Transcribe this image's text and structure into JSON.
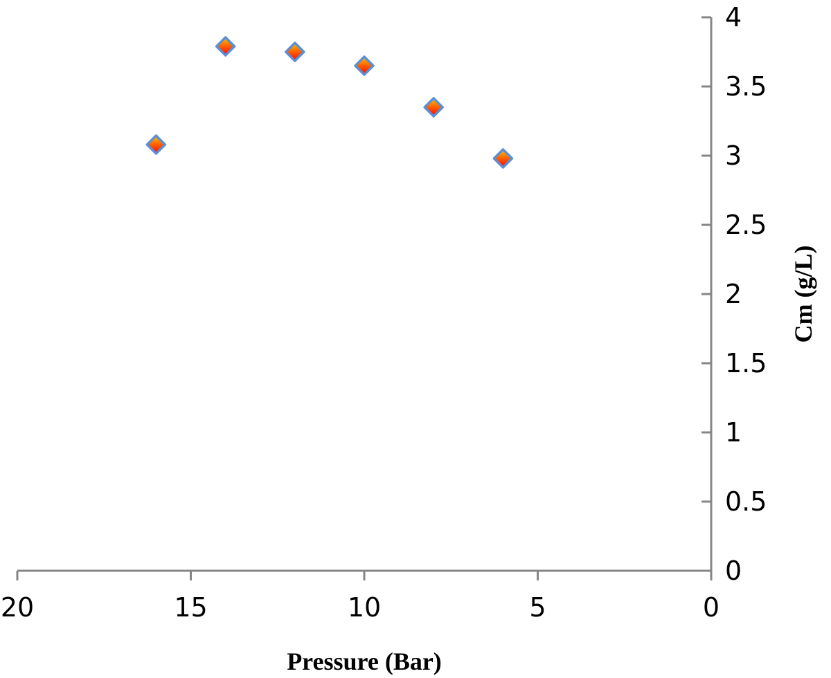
{
  "chart_data": {
    "type": "scatter",
    "xlabel": "Pressure (Bar)",
    "ylabel": "Cm (g/L)",
    "xlim": [
      0,
      20
    ],
    "ylim": [
      0,
      4
    ],
    "x_reversed": true,
    "y_axis_side": "right",
    "grid": false,
    "legend": "none",
    "x_ticks": [
      "20",
      "15",
      "10",
      "5",
      "0"
    ],
    "y_ticks": [
      "0",
      "0.5",
      "1",
      "1.5",
      "2",
      "2.5",
      "3",
      "3.5",
      "4"
    ],
    "x_tick_values": [
      20,
      15,
      10,
      5,
      0
    ],
    "y_tick_values": [
      0,
      0.5,
      1,
      1.5,
      2,
      2.5,
      3,
      3.5,
      4
    ],
    "series": [
      {
        "marker": "diamond",
        "colors": {
          "fill_top": "#ffc000",
          "fill_bottom": "#ff0000",
          "outline": "#5b8fd6"
        },
        "points": [
          {
            "x": 16,
            "y": 3.08
          },
          {
            "x": 14,
            "y": 3.79
          },
          {
            "x": 12,
            "y": 3.75
          },
          {
            "x": 10,
            "y": 3.65
          },
          {
            "x": 8,
            "y": 3.35
          },
          {
            "x": 6,
            "y": 2.98
          }
        ]
      }
    ],
    "axis_color": "#868686"
  }
}
